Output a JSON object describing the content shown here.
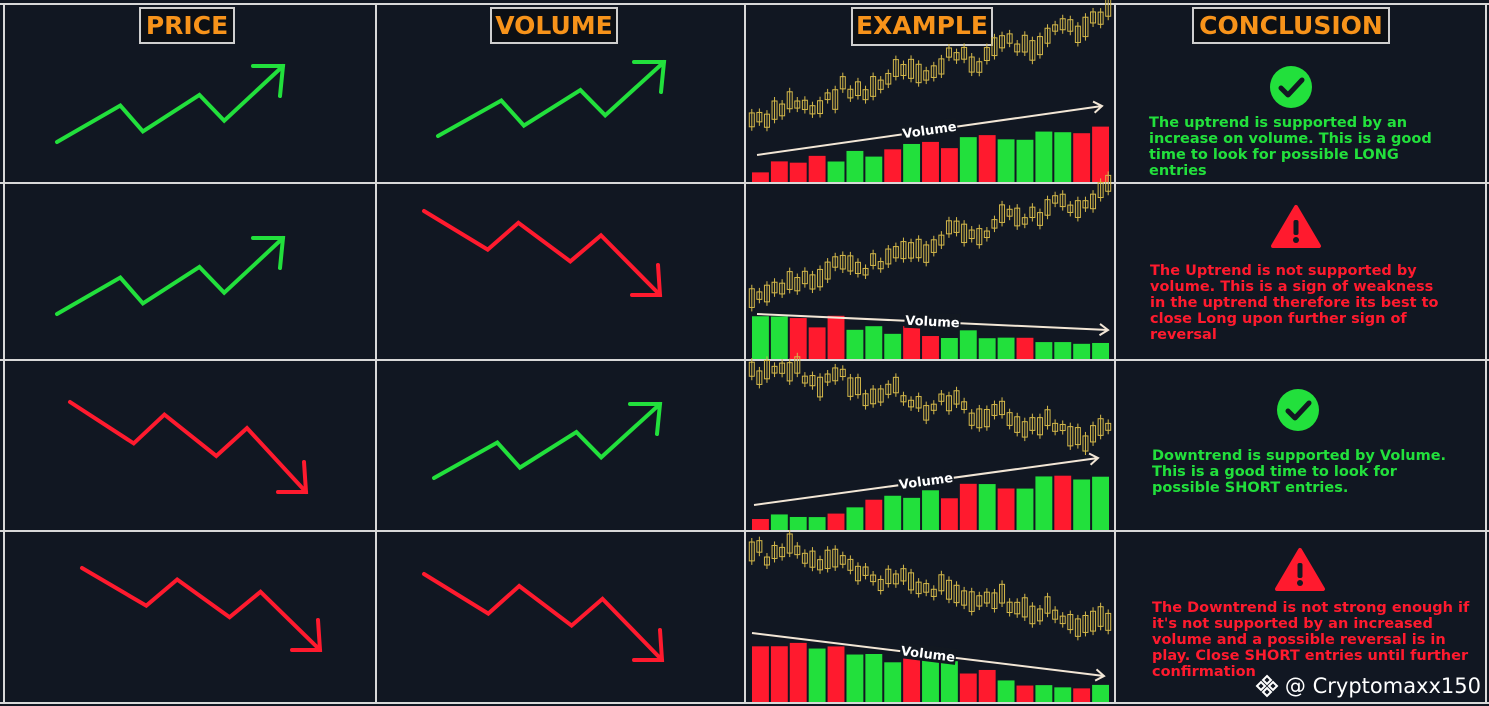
{
  "headers": {
    "price": "PRICE",
    "volume": "VOLUME",
    "example": "EXAMPLE",
    "conclusion": "CONCLUSION"
  },
  "rows": [
    {
      "price_trend": "up",
      "volume_trend": "up",
      "status_icon": "check-circle-icon",
      "status_color": "#22e03c",
      "example_volume_label": "Volume",
      "conclusion": "The uptrend is supported by an increase on volume. This is a good time to look for possible LONG entries"
    },
    {
      "price_trend": "up",
      "volume_trend": "down",
      "status_icon": "warning-triangle-icon",
      "status_color": "#ff1a2e",
      "example_volume_label": "Volume",
      "conclusion": "The Uptrend is not supported by volume. This is a sign of weakness in the uptrend therefore its best to close Long upon further sign of reversal"
    },
    {
      "price_trend": "down",
      "volume_trend": "up",
      "status_icon": "check-circle-icon",
      "status_color": "#22e03c",
      "example_volume_label": "Volume",
      "conclusion": "Downtrend is supported by Volume. This is a good time to look for possible SHORT entries."
    },
    {
      "price_trend": "down",
      "volume_trend": "down",
      "status_icon": "warning-triangle-icon",
      "status_color": "#ff1a2e",
      "example_volume_label": "Volume",
      "conclusion": "The Downtrend is not strong enough if it's not supported by an increased volume and a possible reversal is in play. Close SHORT entries until further confirmation"
    }
  ],
  "colors": {
    "up_green": "#22e03c",
    "down_red": "#ff1a2e",
    "header_orange": "#f7931a",
    "candle_gold": "#d4b84a"
  },
  "watermark": {
    "icon": "binance-logo-icon",
    "text": "@ Cryptomaxx150"
  }
}
